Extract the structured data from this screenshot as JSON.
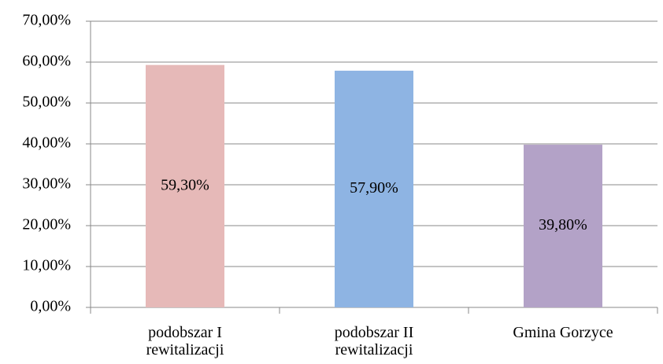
{
  "chart_data": {
    "type": "bar",
    "categories": [
      "podobszar I rewitalizacji",
      "podobszar II rewitalizacji",
      "Gmina Gorzyce"
    ],
    "values": [
      59.3,
      57.9,
      39.8
    ],
    "value_labels": [
      "59,30%",
      "57,90%",
      "39,80%"
    ],
    "colors": [
      "#e6b9b8",
      "#8eb4e3",
      "#b3a2c7"
    ],
    "ylim": [
      0,
      70
    ],
    "yticks": [
      {
        "value": 0,
        "label": "0,00%"
      },
      {
        "value": 10,
        "label": "10,00%"
      },
      {
        "value": 20,
        "label": "20,00%"
      },
      {
        "value": 30,
        "label": "30,00%"
      },
      {
        "value": 40,
        "label": "40,00%"
      },
      {
        "value": 50,
        "label": "50,00%"
      },
      {
        "value": 60,
        "label": "60,00%"
      },
      {
        "value": 70,
        "label": "70,00%"
      }
    ],
    "grid": true
  }
}
